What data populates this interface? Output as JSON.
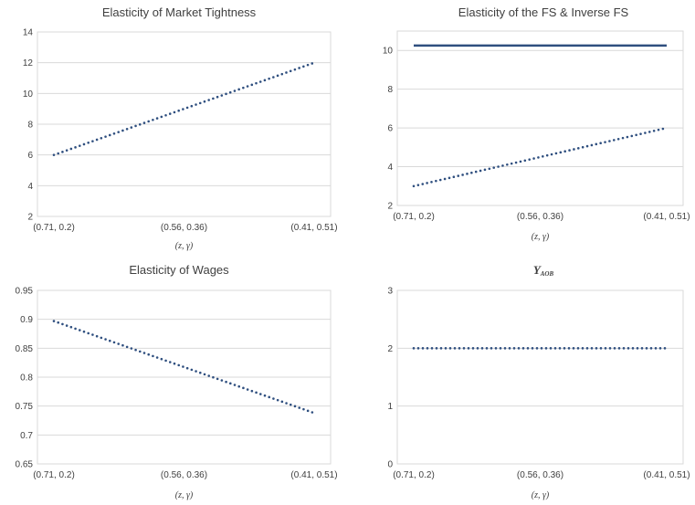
{
  "chart_data": [
    {
      "type": "line",
      "title": "Elasticity of Market Tightness",
      "title_sub": "",
      "categories": [
        "(0.71, 0.2)",
        "(0.56, 0.36)",
        "(0.41, 0.51)"
      ],
      "xlabel": "(z, γ)",
      "ylim": [
        2,
        14
      ],
      "yticks": [
        "2",
        "4",
        "6",
        "8",
        "10",
        "12",
        "14"
      ],
      "series": [
        {
          "style": "dotted",
          "color": "#2f4f7f",
          "y_start": 6,
          "y_end": 12
        }
      ]
    },
    {
      "type": "line",
      "title": "Elasticity of the FS & Inverse FS",
      "title_sub": "",
      "categories": [
        "(0.71, 0.2)",
        "(0.56, 0.36)",
        "(0.41, 0.51)"
      ],
      "xlabel": "(z, γ)",
      "ylim": [
        2,
        11
      ],
      "yticks": [
        "2",
        "4",
        "6",
        "8",
        "10"
      ],
      "series": [
        {
          "style": "solid",
          "color": "#2f4f7f",
          "y_start": 10.25,
          "y_end": 10.25
        },
        {
          "style": "dotted",
          "color": "#2f4f7f",
          "y_start": 3,
          "y_end": 6
        }
      ]
    },
    {
      "type": "line",
      "title": "Elasticity of Wages",
      "title_sub": "",
      "categories": [
        "(0.71, 0.2)",
        "(0.56, 0.36)",
        "(0.41, 0.51)"
      ],
      "xlabel": "(z, γ)",
      "ylim": [
        0.65,
        0.95
      ],
      "yticks": [
        "0.65",
        "0.7",
        "0.75",
        "0.8",
        "0.85",
        "0.9",
        "0.95"
      ],
      "series": [
        {
          "style": "dotted",
          "color": "#2f4f7f",
          "y_start": 0.897,
          "y_end": 0.738
        }
      ]
    },
    {
      "type": "line",
      "title": "Υ",
      "title_sub": "AOB",
      "categories": [
        "(0.71, 0.2)",
        "(0.56, 0.36)",
        "(0.41, 0.51)"
      ],
      "xlabel": "(z, γ)",
      "ylim": [
        0,
        3
      ],
      "yticks": [
        "0",
        "1",
        "2",
        "3"
      ],
      "series": [
        {
          "style": "dotted",
          "color": "#2f4f7f",
          "y_start": 2,
          "y_end": 2
        }
      ]
    }
  ]
}
